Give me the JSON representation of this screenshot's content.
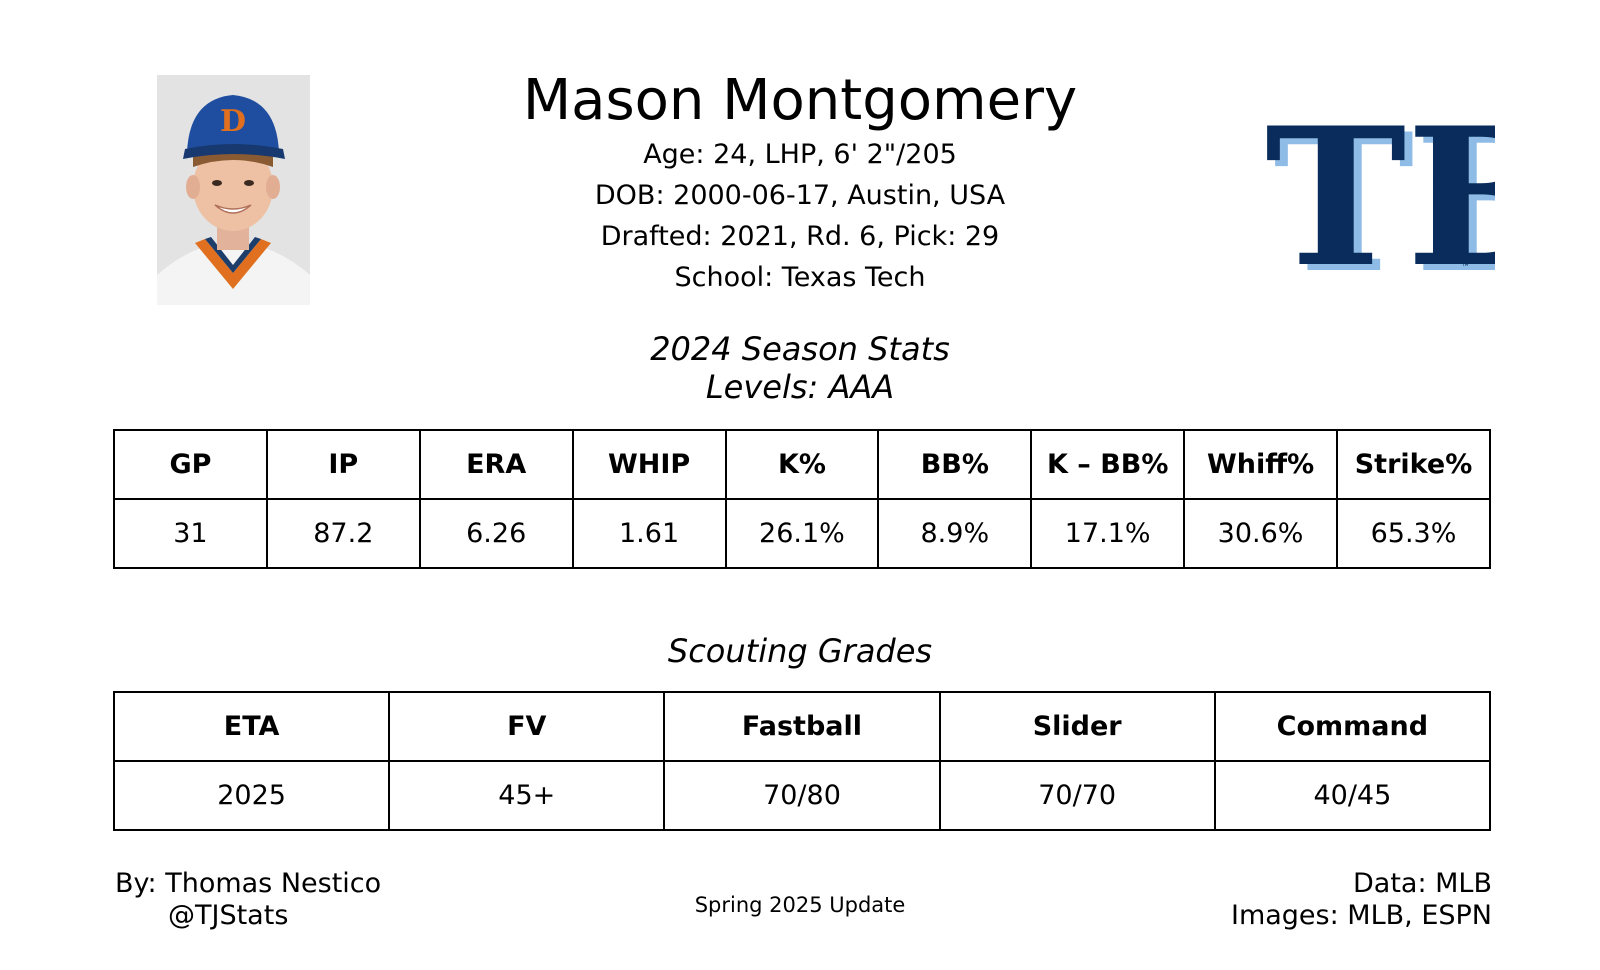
{
  "player": {
    "name": "Mason Montgomery",
    "bio_lines": [
      "Age: 24, LHP, 6' 2\"/205",
      "DOB: 2000-06-17, Austin, USA",
      "Drafted: 2021, Rd. 6, Pick: 29",
      "School: Texas Tech"
    ]
  },
  "team": {
    "logo_text": "TB",
    "primary_color": "#092C5C",
    "accent_color": "#8FBCE6"
  },
  "season": {
    "title": "2024 Season Stats",
    "levels": "Levels: AAA",
    "headers": [
      "GP",
      "IP",
      "ERA",
      "WHIP",
      "K%",
      "BB%",
      "K – BB%",
      "Whiff%",
      "Strike%"
    ],
    "values": [
      "31",
      "87.2",
      "6.26",
      "1.61",
      "26.1%",
      "8.9%",
      "17.1%",
      "30.6%",
      "65.3%"
    ]
  },
  "grades": {
    "title": "Scouting Grades",
    "headers": [
      "ETA",
      "FV",
      "Fastball",
      "Slider",
      "Command"
    ],
    "values": [
      "2025",
      "45+",
      "70/80",
      "70/70",
      "40/45"
    ]
  },
  "footer": {
    "author": "By: Thomas Nestico",
    "handle": "@TJStats",
    "update": "Spring 2025 Update",
    "data_source": "Data: MLB",
    "image_source": "Images: MLB, ESPN"
  }
}
